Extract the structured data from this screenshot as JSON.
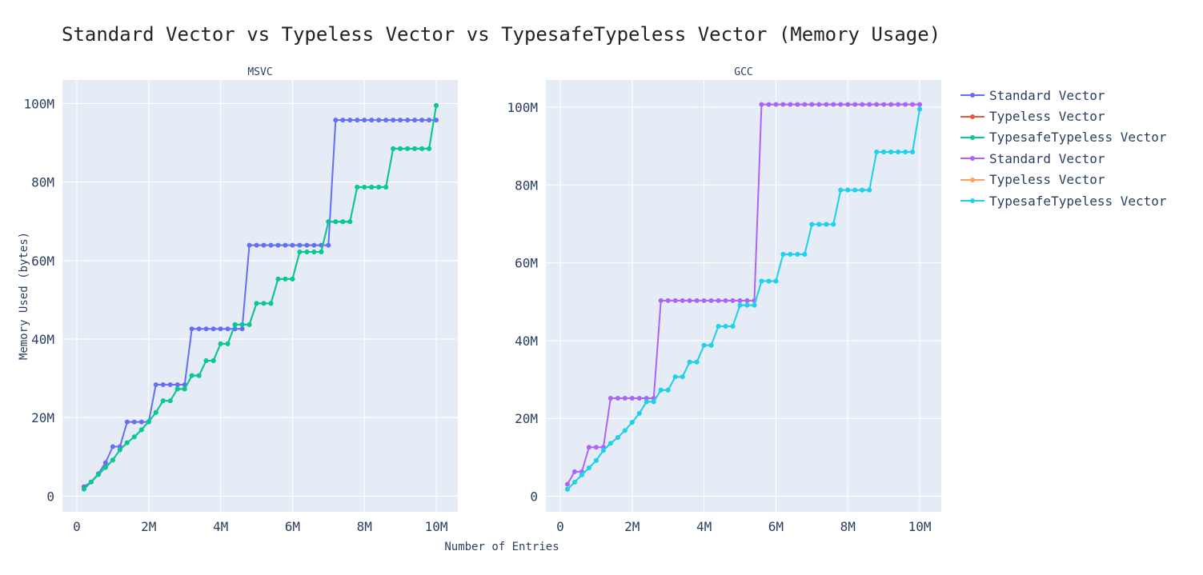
{
  "chart_data": {
    "type": "line",
    "title": "Standard Vector vs Typeless Vector vs TypesafeTypeless Vector (Memory Usage)",
    "xlabel": "Number of Entries",
    "ylabel": "Memory Used (bytes)",
    "grid": true,
    "legend_placement": "right",
    "x": [
      200000,
      400000,
      600000,
      800000,
      1000000,
      1200000,
      1400000,
      1600000,
      1800000,
      2000000,
      2200000,
      2400000,
      2600000,
      2800000,
      3000000,
      3200000,
      3400000,
      3600000,
      3800000,
      4000000,
      4200000,
      4400000,
      4600000,
      4800000,
      5000000,
      5200000,
      5400000,
      5600000,
      5800000,
      6000000,
      6200000,
      6400000,
      6600000,
      6800000,
      7000000,
      7200000,
      7400000,
      7600000,
      7800000,
      8000000,
      8200000,
      8400000,
      8600000,
      8800000,
      9000000,
      9200000,
      9400000,
      9600000,
      9800000,
      10000000
    ],
    "legend": [
      {
        "name": "Standard Vector",
        "color": "#636efa"
      },
      {
        "name": "Typeless Vector",
        "color": "#ef553b"
      },
      {
        "name": "TypesafeTypeless Vector",
        "color": "#00cc96"
      },
      {
        "name": "Standard Vector",
        "color": "#ab63fa"
      },
      {
        "name": "Typeless Vector",
        "color": "#ffa15a"
      },
      {
        "name": "TypesafeTypeless Vector",
        "color": "#19d3f3"
      }
    ],
    "panels": [
      {
        "title": "MSVC",
        "xlim": [
          -400000,
          10600000
        ],
        "ylim": [
          -4000000,
          106000000
        ],
        "xticks": [
          0,
          2000000,
          4000000,
          6000000,
          8000000,
          10000000
        ],
        "xtick_labels": [
          "0",
          "2M",
          "4M",
          "6M",
          "8M",
          "10M"
        ],
        "yticks": [
          0,
          20000000,
          40000000,
          60000000,
          80000000,
          100000000
        ],
        "ytick_labels": [
          "0",
          "20M",
          "40M",
          "60M",
          "80M",
          "100M"
        ],
        "series": [
          {
            "name": "Standard Vector",
            "color": "#636efa",
            "values": [
              2400000,
              3600000,
              5700000,
              8500000,
              12600000,
              12600000,
              18900000,
              18900000,
              18900000,
              18900000,
              28400000,
              28400000,
              28400000,
              28400000,
              28400000,
              42600000,
              42600000,
              42600000,
              42600000,
              42600000,
              42600000,
              42600000,
              42600000,
              63900000,
              63900000,
              63900000,
              63900000,
              63900000,
              63900000,
              63900000,
              63900000,
              63900000,
              63900000,
              63900000,
              63900000,
              95800000,
              95800000,
              95800000,
              95800000,
              95800000,
              95800000,
              95800000,
              95800000,
              95800000,
              95800000,
              95800000,
              95800000,
              95800000,
              95800000,
              95800000
            ]
          },
          {
            "name": "Typeless Vector",
            "color": "#ef553b",
            "values": [
              1800000,
              3600000,
              5500000,
              7300000,
              9200000,
              11800000,
              13600000,
              15100000,
              16900000,
              19000000,
              21300000,
              24300000,
              24300000,
              27300000,
              27300000,
              30700000,
              30700000,
              34500000,
              34500000,
              38800000,
              38800000,
              43700000,
              43700000,
              43700000,
              49100000,
              49100000,
              49100000,
              55300000,
              55300000,
              55300000,
              62200000,
              62200000,
              62200000,
              62200000,
              69900000,
              69900000,
              69900000,
              69900000,
              78700000,
              78700000,
              78700000,
              78700000,
              78700000,
              88500000,
              88500000,
              88500000,
              88500000,
              88500000,
              88500000,
              99500000
            ]
          },
          {
            "name": "TypesafeTypeless Vector",
            "color": "#00cc96",
            "values": [
              1800000,
              3600000,
              5500000,
              7300000,
              9200000,
              11800000,
              13600000,
              15100000,
              16900000,
              19000000,
              21300000,
              24300000,
              24300000,
              27300000,
              27300000,
              30700000,
              30700000,
              34500000,
              34500000,
              38800000,
              38800000,
              43700000,
              43700000,
              43700000,
              49100000,
              49100000,
              49100000,
              55300000,
              55300000,
              55300000,
              62200000,
              62200000,
              62200000,
              62200000,
              69900000,
              69900000,
              69900000,
              69900000,
              78700000,
              78700000,
              78700000,
              78700000,
              78700000,
              88500000,
              88500000,
              88500000,
              88500000,
              88500000,
              88500000,
              99500000
            ]
          }
        ]
      },
      {
        "title": "GCC",
        "xlim": [
          -400000,
          10600000
        ],
        "ylim": [
          -4000000,
          107000000
        ],
        "xticks": [
          0,
          2000000,
          4000000,
          6000000,
          8000000,
          10000000
        ],
        "xtick_labels": [
          "0",
          "2M",
          "4M",
          "6M",
          "8M",
          "10M"
        ],
        "yticks": [
          0,
          20000000,
          40000000,
          60000000,
          80000000,
          100000000
        ],
        "ytick_labels": [
          "0",
          "20M",
          "40M",
          "60M",
          "80M",
          "100M"
        ],
        "series": [
          {
            "name": "Standard Vector",
            "color": "#ab63fa",
            "values": [
              3100000,
              6300000,
              6300000,
              12600000,
              12600000,
              12600000,
              25200000,
              25200000,
              25200000,
              25200000,
              25200000,
              25200000,
              25200000,
              50300000,
              50300000,
              50300000,
              50300000,
              50300000,
              50300000,
              50300000,
              50300000,
              50300000,
              50300000,
              50300000,
              50300000,
              50300000,
              50300000,
              100700000,
              100700000,
              100700000,
              100700000,
              100700000,
              100700000,
              100700000,
              100700000,
              100700000,
              100700000,
              100700000,
              100700000,
              100700000,
              100700000,
              100700000,
              100700000,
              100700000,
              100700000,
              100700000,
              100700000,
              100700000,
              100700000,
              100700000
            ]
          },
          {
            "name": "Typeless Vector",
            "color": "#ffa15a",
            "values": [
              1800000,
              3600000,
              5500000,
              7300000,
              9200000,
              11800000,
              13600000,
              15100000,
              16900000,
              19000000,
              21300000,
              24300000,
              24300000,
              27300000,
              27300000,
              30700000,
              30700000,
              34500000,
              34500000,
              38800000,
              38800000,
              43700000,
              43700000,
              43700000,
              49100000,
              49100000,
              49100000,
              55300000,
              55300000,
              55300000,
              62200000,
              62200000,
              62200000,
              62200000,
              69900000,
              69900000,
              69900000,
              69900000,
              78700000,
              78700000,
              78700000,
              78700000,
              78700000,
              88500000,
              88500000,
              88500000,
              88500000,
              88500000,
              88500000,
              99500000
            ]
          },
          {
            "name": "TypesafeTypeless Vector",
            "color": "#19d3f3",
            "values": [
              1800000,
              3600000,
              5500000,
              7300000,
              9200000,
              11800000,
              13600000,
              15100000,
              16900000,
              19000000,
              21300000,
              24300000,
              24300000,
              27300000,
              27300000,
              30700000,
              30700000,
              34500000,
              34500000,
              38800000,
              38800000,
              43700000,
              43700000,
              43700000,
              49100000,
              49100000,
              49100000,
              55300000,
              55300000,
              55300000,
              62200000,
              62200000,
              62200000,
              62200000,
              69900000,
              69900000,
              69900000,
              69900000,
              78700000,
              78700000,
              78700000,
              78700000,
              78700000,
              88500000,
              88500000,
              88500000,
              88500000,
              88500000,
              88500000,
              99500000
            ]
          }
        ]
      }
    ]
  },
  "colors": {
    "plot_background": "#e5ecf6",
    "gridline": "#ffffff",
    "text": "#2a3f5f",
    "title_text": "#222222"
  }
}
